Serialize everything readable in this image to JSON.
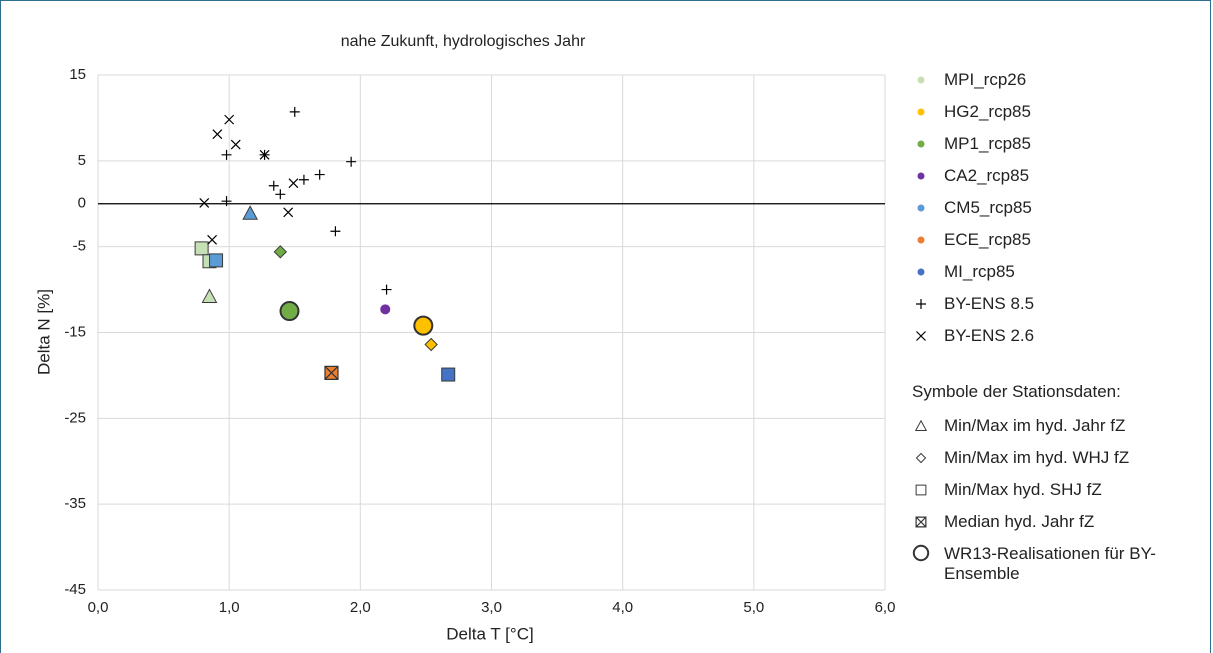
{
  "chart_data": {
    "type": "scatter",
    "title": "nahe Zukunft, hydrologisches Jahr",
    "x_label": "Delta T [°C]",
    "y_label": "Delta N [%]",
    "xlim": [
      0,
      6
    ],
    "ylim": [
      -45,
      15
    ],
    "xticks": [
      {
        "value": 0,
        "label": "0,0"
      },
      {
        "value": 1,
        "label": "1,0"
      },
      {
        "value": 2,
        "label": "2,0"
      },
      {
        "value": 3,
        "label": "3,0"
      },
      {
        "value": 4,
        "label": "4,0"
      },
      {
        "value": 5,
        "label": "5,0"
      },
      {
        "value": 6,
        "label": "6,0"
      }
    ],
    "yticks": [
      15,
      5,
      0,
      -5,
      -15,
      -25,
      -35,
      -45
    ],
    "grid": true,
    "zero_line": true,
    "series": [
      {
        "name": "MPI_rcp26",
        "color": "#c5e0b4",
        "x": [
          0.79,
          0.85,
          0.85
        ],
        "y": [
          -5.2,
          -6.7,
          -10.8
        ],
        "markers": [
          "square",
          "square",
          "triangle"
        ]
      },
      {
        "name": "HG2_rcp85",
        "color": "#ffc000",
        "x": [
          2.48,
          2.54
        ],
        "y": [
          -14.2,
          -16.4
        ],
        "markers": [
          "circle",
          "diamond"
        ]
      },
      {
        "name": "MP1_rcp85",
        "color": "#70ad47",
        "x": [
          1.46,
          1.39
        ],
        "y": [
          -12.5,
          -5.6
        ],
        "markers": [
          "circle",
          "diamond"
        ]
      },
      {
        "name": "CA2_rcp85",
        "color": "#7030a0",
        "x": [
          2.19
        ],
        "y": [
          -12.3
        ],
        "markers": [
          "dot"
        ]
      },
      {
        "name": "CM5_rcp85",
        "color": "#5b9bd5",
        "x": [
          1.16,
          0.9
        ],
        "y": [
          -1.1,
          -6.6
        ],
        "markers": [
          "triangle",
          "square"
        ]
      },
      {
        "name": "ECE_rcp85",
        "color": "#ed7d31",
        "x": [
          1.78
        ],
        "y": [
          -19.7
        ],
        "markers": [
          "median"
        ]
      },
      {
        "name": "MI_rcp85",
        "color": "#4472c4",
        "x": [
          2.67
        ],
        "y": [
          -19.9
        ],
        "markers": [
          "square"
        ]
      },
      {
        "name": "BY-ENS 8.5",
        "color": "#000000",
        "marker": "plus",
        "x": [
          1.5,
          0.98,
          1.27,
          1.93,
          1.69,
          1.57,
          1.34,
          1.39,
          0.98,
          1.81,
          2.2
        ],
        "y": [
          10.7,
          5.7,
          5.7,
          4.9,
          3.4,
          2.8,
          2.1,
          1.1,
          0.3,
          -3.2,
          -10.0
        ]
      },
      {
        "name": "BY-ENS 2.6",
        "color": "#000000",
        "marker": "cross",
        "x": [
          1.0,
          0.91,
          1.05,
          1.27,
          1.49,
          1.45,
          0.81,
          0.87
        ],
        "y": [
          9.8,
          8.1,
          6.9,
          5.7,
          2.4,
          -1.0,
          0.1,
          -4.2
        ]
      }
    ],
    "symbol_legend": {
      "title": "Symbole der Stationsdaten:",
      "items": [
        {
          "shape": "triangle",
          "label": "Min/Max im hyd. Jahr fZ"
        },
        {
          "shape": "diamond",
          "label": "Min/Max im hyd. WHJ fZ"
        },
        {
          "shape": "square",
          "label": "Min/Max hyd. SHJ fZ"
        },
        {
          "shape": "median",
          "label": "Median hyd. Jahr fZ"
        },
        {
          "shape": "circle",
          "label": "WR13-Realisationen für BY-Ensemble"
        }
      ]
    }
  }
}
